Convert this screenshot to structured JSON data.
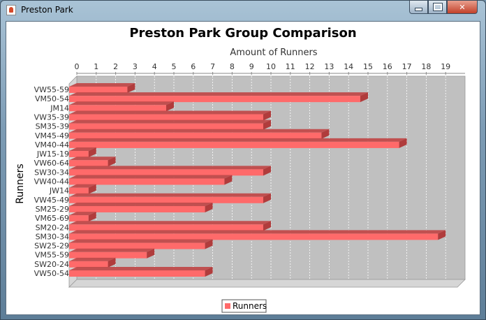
{
  "window": {
    "title": "Preston Park"
  },
  "colors": {
    "bar": "#ff6a6a",
    "bar_top": "#c04a4a",
    "bar_side": "#b03c3c",
    "plot_bg": "#c0c0c0",
    "plot_wall": "#d6d6d6"
  },
  "chart_data": {
    "type": "bar",
    "orientation": "horizontal",
    "title": "Preston Park Group Comparison",
    "xlabel": "Amount of Runners",
    "ylabel": "Runners",
    "xlim": [
      0,
      20
    ],
    "xticks": [
      0,
      1,
      2,
      3,
      4,
      5,
      6,
      7,
      8,
      9,
      10,
      11,
      12,
      13,
      14,
      15,
      16,
      17,
      18,
      19
    ],
    "grid": true,
    "legend_position": "bottom",
    "categories": [
      "VW55-59",
      "VM50-54",
      "JM14",
      "VW35-39",
      "SM35-39",
      "VM45-49",
      "VM40-44",
      "JW15-19",
      "VW60-64",
      "SW30-34",
      "VW40-44",
      "JW14",
      "VW45-49",
      "SM25-29",
      "VM65-69",
      "SM20-24",
      "SM30-34",
      "SW25-29",
      "VM55-59",
      "SW20-24",
      "VW50-54"
    ],
    "series": [
      {
        "name": "Runners",
        "values": [
          3,
          15,
          5,
          10,
          10,
          13,
          17,
          1,
          2,
          10,
          8,
          1,
          10,
          7,
          1,
          10,
          19,
          7,
          4,
          2,
          7
        ]
      }
    ]
  }
}
